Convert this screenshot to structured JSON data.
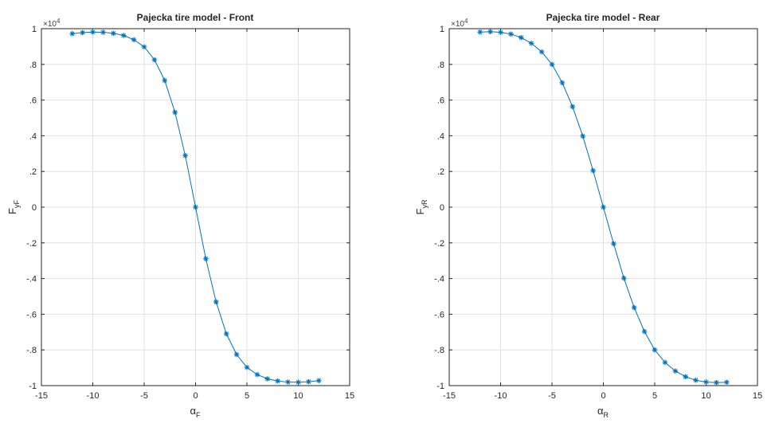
{
  "chart_data": [
    {
      "type": "line",
      "title": "Pajecka tire model - Front",
      "xlabel": {
        "main": "α",
        "sub": "F"
      },
      "ylabel": {
        "main": "F",
        "sub": "yF"
      },
      "y_multiplier": {
        "base": "×10",
        "exp": "4"
      },
      "xlim": [
        -15,
        15
      ],
      "ylim": [
        -1,
        1
      ],
      "xticks": [
        -15,
        -10,
        -5,
        0,
        5,
        10,
        15
      ],
      "yticks": [
        -1,
        -0.8,
        -0.6,
        -0.4,
        -0.2,
        0,
        0.2,
        0.4,
        0.6,
        0.8,
        1
      ],
      "grid": true,
      "marker": "asterisk",
      "series_color": "#0072BD",
      "series": [
        {
          "x": [
            -12,
            -11,
            -10,
            -9,
            -8,
            -7,
            -6,
            -5,
            -4,
            -3,
            -2,
            -1,
            0,
            1,
            2,
            3,
            4,
            5,
            6,
            7,
            8,
            9,
            10,
            11,
            12
          ],
          "values": [
            0.972,
            0.978,
            0.981,
            0.98,
            0.974,
            0.962,
            0.938,
            0.898,
            0.826,
            0.71,
            0.531,
            0.289,
            0.0,
            -0.289,
            -0.531,
            -0.71,
            -0.826,
            -0.898,
            -0.938,
            -0.962,
            -0.974,
            -0.98,
            -0.981,
            -0.978,
            -0.972
          ]
        }
      ]
    },
    {
      "type": "line",
      "title": "Pajecka tire model - Rear",
      "xlabel": {
        "main": "α",
        "sub": "R"
      },
      "ylabel": {
        "main": "F",
        "sub": "yR"
      },
      "y_multiplier": {
        "base": "×10",
        "exp": "4"
      },
      "xlim": [
        -15,
        15
      ],
      "ylim": [
        -1,
        1
      ],
      "xticks": [
        -15,
        -10,
        -5,
        0,
        5,
        10,
        15
      ],
      "yticks": [
        -1,
        -0.8,
        -0.6,
        -0.4,
        -0.2,
        0,
        0.2,
        0.4,
        0.6,
        0.8,
        1
      ],
      "grid": true,
      "marker": "asterisk",
      "series_color": "#0072BD",
      "series": [
        {
          "x": [
            -12,
            -11,
            -10,
            -9,
            -8,
            -7,
            -6,
            -5,
            -4,
            -3,
            -2,
            -1,
            0,
            1,
            2,
            3,
            4,
            5,
            6,
            7,
            8,
            9,
            10,
            11,
            12
          ],
          "values": [
            0.981,
            0.983,
            0.98,
            0.97,
            0.95,
            0.918,
            0.87,
            0.8,
            0.697,
            0.563,
            0.398,
            0.205,
            0.0,
            -0.205,
            -0.398,
            -0.563,
            -0.697,
            -0.8,
            -0.87,
            -0.918,
            -0.95,
            -0.97,
            -0.98,
            -0.983,
            -0.981
          ]
        }
      ]
    }
  ]
}
